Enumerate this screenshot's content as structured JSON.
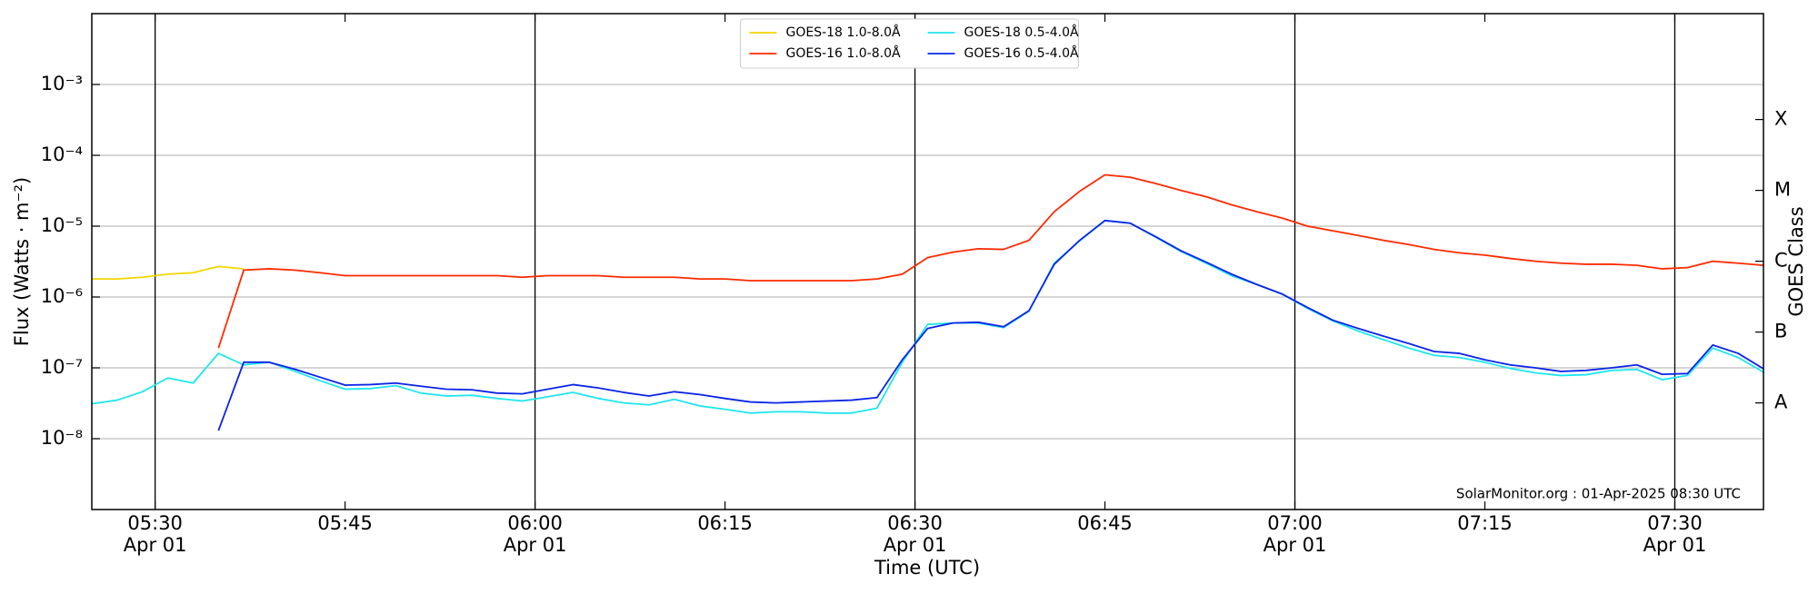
{
  "chart_data": {
    "type": "line",
    "x_label": "Time (UTC)",
    "y_label": "Flux (Watts · m⁻²)",
    "y2_label": "GOES Class",
    "annotation": "SolarMonitor.org : 01-Apr-2025 08:30 UTC",
    "log_y": true,
    "grid": true,
    "legend": "upper center",
    "xlim": [
      "05:25",
      "07:37"
    ],
    "xticks": [
      {
        "value": "05:30",
        "label": "05:30",
        "sublabel": "Apr 01"
      },
      {
        "value": "05:45",
        "label": "05:45"
      },
      {
        "value": "06:00",
        "label": "06:00",
        "sublabel": "Apr 01"
      },
      {
        "value": "06:15",
        "label": "06:15"
      },
      {
        "value": "06:30",
        "label": "06:30",
        "sublabel": "Apr 01"
      },
      {
        "value": "06:45",
        "label": "06:45"
      },
      {
        "value": "07:00",
        "label": "07:00",
        "sublabel": "Apr 01"
      },
      {
        "value": "07:15",
        "label": "07:15"
      },
      {
        "value": "07:30",
        "label": "07:30",
        "sublabel": "Apr 01"
      }
    ],
    "ylim": [
      1e-09,
      0.01
    ],
    "yticks": [
      {
        "value": 1e-08,
        "label": "10⁻⁸"
      },
      {
        "value": 1e-07,
        "label": "10⁻⁷"
      },
      {
        "value": 1e-06,
        "label": "10⁻⁶"
      },
      {
        "value": 1e-05,
        "label": "10⁻⁵"
      },
      {
        "value": 0.0001,
        "label": "10⁻⁴"
      },
      {
        "value": 0.001,
        "label": "10⁻³"
      }
    ],
    "y2lim": [
      1e-09,
      0.01
    ],
    "y2ticks": [
      {
        "value": 3.2e-08,
        "label": "A"
      },
      {
        "value": 3.2e-07,
        "label": "B"
      },
      {
        "value": 3.2e-06,
        "label": "C"
      },
      {
        "value": 3.2e-05,
        "label": "M"
      },
      {
        "value": 0.00032,
        "label": "X"
      }
    ],
    "x": [
      "05:25",
      "05:27",
      "05:29",
      "05:31",
      "05:33",
      "05:35",
      "05:37",
      "05:39",
      "05:41",
      "05:43",
      "05:45",
      "05:47",
      "05:49",
      "05:51",
      "05:53",
      "05:55",
      "05:57",
      "05:59",
      "06:01",
      "06:03",
      "06:05",
      "06:07",
      "06:09",
      "06:11",
      "06:13",
      "06:15",
      "06:17",
      "06:19",
      "06:21",
      "06:23",
      "06:25",
      "06:27",
      "06:29",
      "06:31",
      "06:33",
      "06:35",
      "06:37",
      "06:39",
      "06:41",
      "06:43",
      "06:45",
      "06:47",
      "06:49",
      "06:51",
      "06:53",
      "06:55",
      "06:57",
      "06:59",
      "07:01",
      "07:03",
      "07:05",
      "07:07",
      "07:09",
      "07:11",
      "07:13",
      "07:15",
      "07:17",
      "07:19",
      "07:21",
      "07:23",
      "07:25",
      "07:27",
      "07:29",
      "07:31",
      "07:33",
      "07:35",
      "07:37"
    ],
    "series": [
      {
        "name": "GOES-18 1.0-8.0Å",
        "color": "#f2d600",
        "values": [
          1.8e-06,
          1.8e-06,
          1.9e-06,
          2.1e-06,
          2.2e-06,
          2.7e-06,
          2.5e-06,
          null,
          null,
          null,
          null,
          null,
          null,
          null,
          null,
          null,
          null,
          null,
          null,
          null,
          null,
          null,
          null,
          null,
          null,
          null,
          null,
          null,
          null,
          null,
          null,
          null,
          null,
          null,
          null,
          null,
          null,
          null,
          null,
          null,
          null,
          null,
          null,
          null,
          null,
          null,
          null,
          null,
          null,
          null,
          null,
          null,
          null,
          null,
          null,
          null,
          null,
          null,
          null,
          null,
          null,
          null,
          null,
          null,
          null,
          null,
          null
        ]
      },
      {
        "name": "GOES-16 1.0-8.0Å",
        "color": "#ff2a00",
        "values": [
          null,
          null,
          null,
          null,
          null,
          1.9e-07,
          2.4e-06,
          2.5e-06,
          2.4e-06,
          2.2e-06,
          2e-06,
          2e-06,
          2e-06,
          2e-06,
          2e-06,
          2e-06,
          2e-06,
          1.9e-06,
          2e-06,
          2e-06,
          2e-06,
          1.9e-06,
          1.9e-06,
          1.9e-06,
          1.8e-06,
          1.8e-06,
          1.7e-06,
          1.7e-06,
          1.7e-06,
          1.7e-06,
          1.7e-06,
          1.8e-06,
          2.1e-06,
          3.6e-06,
          4.3e-06,
          4.8e-06,
          4.7e-06,
          6.3e-06,
          1.6e-05,
          3.1e-05,
          5.3e-05,
          4.9e-05,
          4e-05,
          3.2e-05,
          2.6e-05,
          2e-05,
          1.6e-05,
          1.3e-05,
          1e-05,
          8.6e-06,
          7.4e-06,
          6.3e-06,
          5.5e-06,
          4.7e-06,
          4.2e-06,
          3.9e-06,
          3.5e-06,
          3.2e-06,
          3e-06,
          2.9e-06,
          2.9e-06,
          2.8e-06,
          2.5e-06,
          2.6e-06,
          3.2e-06,
          3e-06,
          2.8e-06
        ]
      },
      {
        "name": "GOES-18 0.5-4.0Å",
        "color": "#1ee6ee",
        "values": [
          3.1e-08,
          3.5e-08,
          4.6e-08,
          7.2e-08,
          6.1e-08,
          1.6e-07,
          1.1e-07,
          1.2e-07,
          9e-08,
          6.6e-08,
          5e-08,
          5.1e-08,
          5.6e-08,
          4.4e-08,
          4e-08,
          4.1e-08,
          3.7e-08,
          3.4e-08,
          3.9e-08,
          4.5e-08,
          3.7e-08,
          3.2e-08,
          3e-08,
          3.6e-08,
          2.9e-08,
          2.6e-08,
          2.3e-08,
          2.4e-08,
          2.4e-08,
          2.3e-08,
          2.3e-08,
          2.7e-08,
          1.2e-07,
          4.1e-07,
          4.3e-07,
          4.3e-07,
          3.7e-07,
          6.3e-07,
          3e-06,
          6.2e-06,
          1.2e-05,
          1.1e-05,
          7e-06,
          4.4e-06,
          3e-06,
          2e-06,
          1.5e-06,
          1.1e-06,
          6.9e-07,
          4.6e-07,
          3.3e-07,
          2.5e-07,
          1.9e-07,
          1.5e-07,
          1.4e-07,
          1.2e-07,
          9.8e-08,
          8.5e-08,
          7.8e-08,
          8e-08,
          9.2e-08,
          9.5e-08,
          6.8e-08,
          7.8e-08,
          1.9e-07,
          1.4e-07,
          8.7e-08
        ]
      },
      {
        "name": "GOES-16 0.5-4.0Å",
        "color": "#0a24e8",
        "values": [
          null,
          null,
          null,
          null,
          null,
          1.3e-08,
          1.2e-07,
          1.2e-07,
          9.6e-08,
          7.4e-08,
          5.7e-08,
          5.8e-08,
          6.1e-08,
          5.5e-08,
          5e-08,
          4.9e-08,
          4.4e-08,
          4.3e-08,
          5e-08,
          5.8e-08,
          5.2e-08,
          4.5e-08,
          4e-08,
          4.6e-08,
          4.2e-08,
          3.7e-08,
          3.3e-08,
          3.2e-08,
          3.3e-08,
          3.4e-08,
          3.5e-08,
          3.8e-08,
          1.3e-07,
          3.6e-07,
          4.3e-07,
          4.4e-07,
          3.8e-07,
          6.4e-07,
          2.9e-06,
          6.3e-06,
          1.2e-05,
          1.1e-05,
          7.1e-06,
          4.5e-06,
          3.1e-06,
          2.1e-06,
          1.5e-06,
          1.1e-06,
          7.1e-07,
          4.7e-07,
          3.6e-07,
          2.8e-07,
          2.2e-07,
          1.7e-07,
          1.6e-07,
          1.3e-07,
          1.1e-07,
          1e-07,
          8.9e-08,
          9.2e-08,
          1e-07,
          1.1e-07,
          8.1e-08,
          8.3e-08,
          2.1e-07,
          1.6e-07,
          9.7e-08
        ]
      }
    ]
  }
}
